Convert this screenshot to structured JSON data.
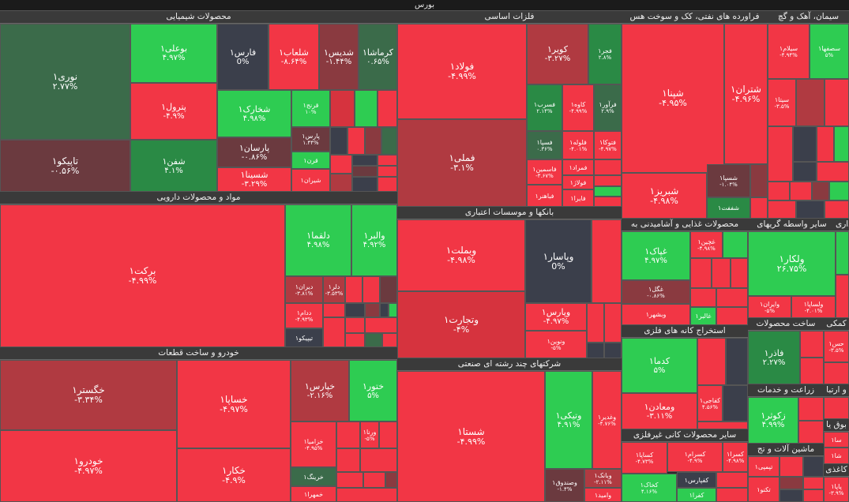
{
  "header": {
    "title": "بورس"
  },
  "sectors": {
    "chem": "محصولات شیمیایی",
    "pharma": "مواد و محصولات دارویی",
    "auto": "خودرو و ساخت قطعات",
    "metals": "فلزات اساسی",
    "banks": "بانکها و موسسات اعتباری",
    "multi": "شرکتهای چند رشته ای صنعتی",
    "oil": "فراورده های نفتی، کک و سوخت هس",
    "cement": "سیمان، آهک و گچ",
    "food": "محصولات غذایی و آشامیدنی به",
    "mining": "استخراج کانه های فلزی",
    "nonmetal": "سایر محصولات کانی غیرفلزی",
    "other_intermed": "سایر واسطه گریهای",
    "misc1": "ساخت محصولات",
    "agri": "زراعت و خدمات",
    "machine": "ماشین آلات و تج",
    "komaki": "کمکی",
    "transport": "و انبارداری",
    "amlak": "بوق یا",
    "kaghazi": "کاغذی",
    "ertebat": "و ارتبا"
  },
  "cells": {
    "nouri": {
      "sym": "نوری۱",
      "chg": "۲.۷۷%"
    },
    "bouali": {
      "sym": "بوعلی۱",
      "chg": "۴.۹۷%"
    },
    "fars": {
      "sym": "فارس۱",
      "chg": "0%"
    },
    "shalab": {
      "sym": "شلعاب۱",
      "chg": "-۸.۶۴%"
    },
    "shadis": {
      "sym": "شدیس۱",
      "chg": "-۱.۴۴%"
    },
    "kermasha": {
      "sym": "کرماشا۱",
      "chg": "۰.۶۵%"
    },
    "petrol": {
      "sym": "پترول۱",
      "chg": "-۴.۹%"
    },
    "shkhark": {
      "sym": "شخارک۱",
      "chg": "۴.۹۸%"
    },
    "qanj": {
      "sym": "قرنج۱",
      "chg": "۱۰%"
    },
    "tapiko": {
      "sym": "تاپیکو۱",
      "chg": "-۰.۵۶%"
    },
    "shefn": {
      "sym": "شفن۱",
      "chg": "۴.۱%"
    },
    "parsan": {
      "sym": "پارسان۱",
      "chg": "-۰.۸۶%"
    },
    "pars": {
      "sym": "پارس۱",
      "chg": "۱.۴۴%"
    },
    "qaran": {
      "sym": "قرن۱",
      "chg": ""
    },
    "shsina": {
      "sym": "شسینا۱",
      "chg": "-۳.۲۹%"
    },
    "shiran": {
      "sym": "شیران۱",
      "chg": ""
    },
    "barekat": {
      "sym": "برکت۱",
      "chg": "-۴.۹۹%"
    },
    "dalqama": {
      "sym": "دلقما۱",
      "chg": "۴.۹۸%"
    },
    "valbar": {
      "sym": "والبر۱",
      "chg": "۴.۹۲%"
    },
    "diran": {
      "sym": "دیران۱",
      "chg": "-۳.۸۱%"
    },
    "dalar": {
      "sym": "دلر۱",
      "chg": "-۳.۵۳%"
    },
    "dodam": {
      "sym": "ددام۱",
      "chg": "-۴.۹۳%"
    },
    "tipiko": {
      "sym": "تیپیکو۱",
      "chg": ""
    },
    "khegostar": {
      "sym": "خگستر۱",
      "chg": "-۳.۳۴%"
    },
    "khsapa": {
      "sym": "خساپا۱",
      "chg": "-۴.۹۷%"
    },
    "khpars": {
      "sym": "خپارس۱",
      "chg": "-۲.۱۶%"
    },
    "khtour": {
      "sym": "ختور۱",
      "chg": "۵%"
    },
    "khodro": {
      "sym": "خودرو۱",
      "chg": "-۴.۹۷%"
    },
    "khkar": {
      "sym": "خکار۱",
      "chg": "-۴.۹%"
    },
    "khzamia": {
      "sym": "خزامیا۱",
      "chg": "-۴.۹۵%"
    },
    "khrink": {
      "sym": "خرینگ۱",
      "chg": ""
    },
    "khamhra": {
      "sym": "خمهرا۱",
      "chg": ""
    },
    "verna": {
      "sym": "ورنا۱",
      "chg": "-۵%"
    },
    "foulad": {
      "sym": "فولاد۱",
      "chg": "-۴.۹۹%"
    },
    "kavir": {
      "sym": "کویر۱",
      "chg": "-۳.۲۷%"
    },
    "fajr": {
      "sym": "فجر۱",
      "chg": "۲.۸%"
    },
    "fasrab": {
      "sym": "فسرب۱",
      "chg": "۲.۱۴%"
    },
    "kaveh": {
      "sym": "کاوه۱",
      "chg": "-۴.۹۹%"
    },
    "faravar": {
      "sym": "فرآور۱",
      "chg": "۲.۹%"
    },
    "fameli": {
      "sym": "فملی۱",
      "chg": "-۳.۱%"
    },
    "fasapa": {
      "sym": "فسپا۱",
      "chg": "۰.۳۶%"
    },
    "foulah": {
      "sym": "فلوله۱",
      "chg": "-۴.۰۱%"
    },
    "ftouka": {
      "sym": "فتوکا۱",
      "chg": "-۴.۹۷%"
    },
    "fesamin": {
      "sym": "فاسمین۱",
      "chg": "-۳.۶۷%"
    },
    "famrad": {
      "sym": "فمراد۱",
      "chg": ""
    },
    "foulaj": {
      "sym": "فولاژ۱",
      "chg": ""
    },
    "fabahnar": {
      "sym": "فباهنر۱",
      "chg": ""
    },
    "faira": {
      "sym": "فایرا۱",
      "chg": ""
    },
    "vbmelat": {
      "sym": "وبملت۱",
      "chg": "-۴.۹۸%"
    },
    "vpasar": {
      "sym": "وپاسار۱",
      "chg": "0%"
    },
    "vtejarat": {
      "sym": "وتجارت۱",
      "chg": "-۴%"
    },
    "vpars": {
      "sym": "وپارس۱",
      "chg": "-۴.۹۷%"
    },
    "vnovin": {
      "sym": "ونوین۱",
      "chg": "-۵%"
    },
    "shasta": {
      "sym": "شستا۱",
      "chg": "-۴.۹۹%"
    },
    "vtika": {
      "sym": "وتیکی۱",
      "chg": "۴.۹۱%"
    },
    "vqadir": {
      "sym": "وغدیر۱",
      "chg": "-۴.۷۶%"
    },
    "vbank": {
      "sym": "وبانک۱",
      "chg": "-۲.۱۱%"
    },
    "vsandouq": {
      "sym": "وصندوق۱",
      "chg": "-۱.۴%"
    },
    "vamid": {
      "sym": "وامید۱",
      "chg": ""
    },
    "shpana": {
      "sym": "شپنا۱",
      "chg": "-۴.۹۵%"
    },
    "shtran": {
      "sym": "شتران۱",
      "chg": "-۴.۹۶%"
    },
    "shbriz": {
      "sym": "شبریز۱",
      "chg": "-۴.۹۸%"
    },
    "shspa": {
      "sym": "شسپا۱",
      "chg": "-۱.۰۴%"
    },
    "shfft": {
      "sym": "شففت۱",
      "chg": ""
    },
    "sylam": {
      "sym": "سیلام۱",
      "chg": "-۴.۹۴%"
    },
    "sesofha": {
      "sym": "سصفها۱",
      "chg": "۵%"
    },
    "sita": {
      "sym": "سیتا۱",
      "chg": "-۳.۵%"
    },
    "qahak": {
      "sym": "غپاک۱",
      "chg": "۴.۹۷%"
    },
    "qchin": {
      "sym": "غچین۱",
      "chg": "-۴.۹۸%"
    },
    "qgol": {
      "sym": "غگل۱",
      "chg": "-۰.۸۶%"
    },
    "vbshahr": {
      "sym": "وبشهر۱",
      "chg": ""
    },
    "qalbor": {
      "sym": "غالبر۱",
      "chg": ""
    },
    "velkar": {
      "sym": "ولکار۱",
      "chg": "۲۶.۷۵%"
    },
    "vairan": {
      "sym": "وایران۱",
      "chg": "-۵%"
    },
    "volsapa": {
      "sym": "ولساپا۱",
      "chg": "-۴.۰۱%"
    },
    "kadama": {
      "sym": "کدما۱",
      "chg": "۵%"
    },
    "kmaadan": {
      "sym": "ومعادن۱",
      "chg": "-۳.۱۱%"
    },
    "kafaji": {
      "sym": "کفاجی۱",
      "chg": "۴.۵۶%"
    },
    "kapal": {
      "sym": "کپال۱",
      "chg": "-۴.۷۴%"
    },
    "fazar": {
      "sym": "فاذر۱",
      "chg": "۲.۲۷%"
    },
    "zakousar": {
      "sym": "زکوثر۱",
      "chg": "۴.۹۹%"
    },
    "tapsi": {
      "sym": "تپمپی۱",
      "chg": ""
    },
    "takno": {
      "sym": "تکنو۱",
      "chg": ""
    },
    "kaspa": {
      "sym": "کساپا۱",
      "chg": "-۴.۷۳%"
    },
    "kasram": {
      "sym": "کسرام۱",
      "chg": "-۴.۹%"
    },
    "kasra": {
      "sym": "کسرا۱",
      "chg": "-۴.۹۸%"
    },
    "kakhak": {
      "sym": "کخاک۱",
      "chg": "۴.۱۶%"
    },
    "kafpars": {
      "sym": "کفپارس۱",
      "chg": ""
    },
    "kfra": {
      "sym": "کفرا۱",
      "chg": ""
    },
    "hasp": {
      "sym": "حس۱",
      "chg": "-۳.۵%"
    },
    "hapar": {
      "sym": "پاپا۱",
      "chg": "-۳.۹%"
    },
    "sham": {
      "sym": "سا۱",
      "chg": ""
    },
    "shkam": {
      "sym": "شا۱",
      "chg": ""
    }
  }
}
